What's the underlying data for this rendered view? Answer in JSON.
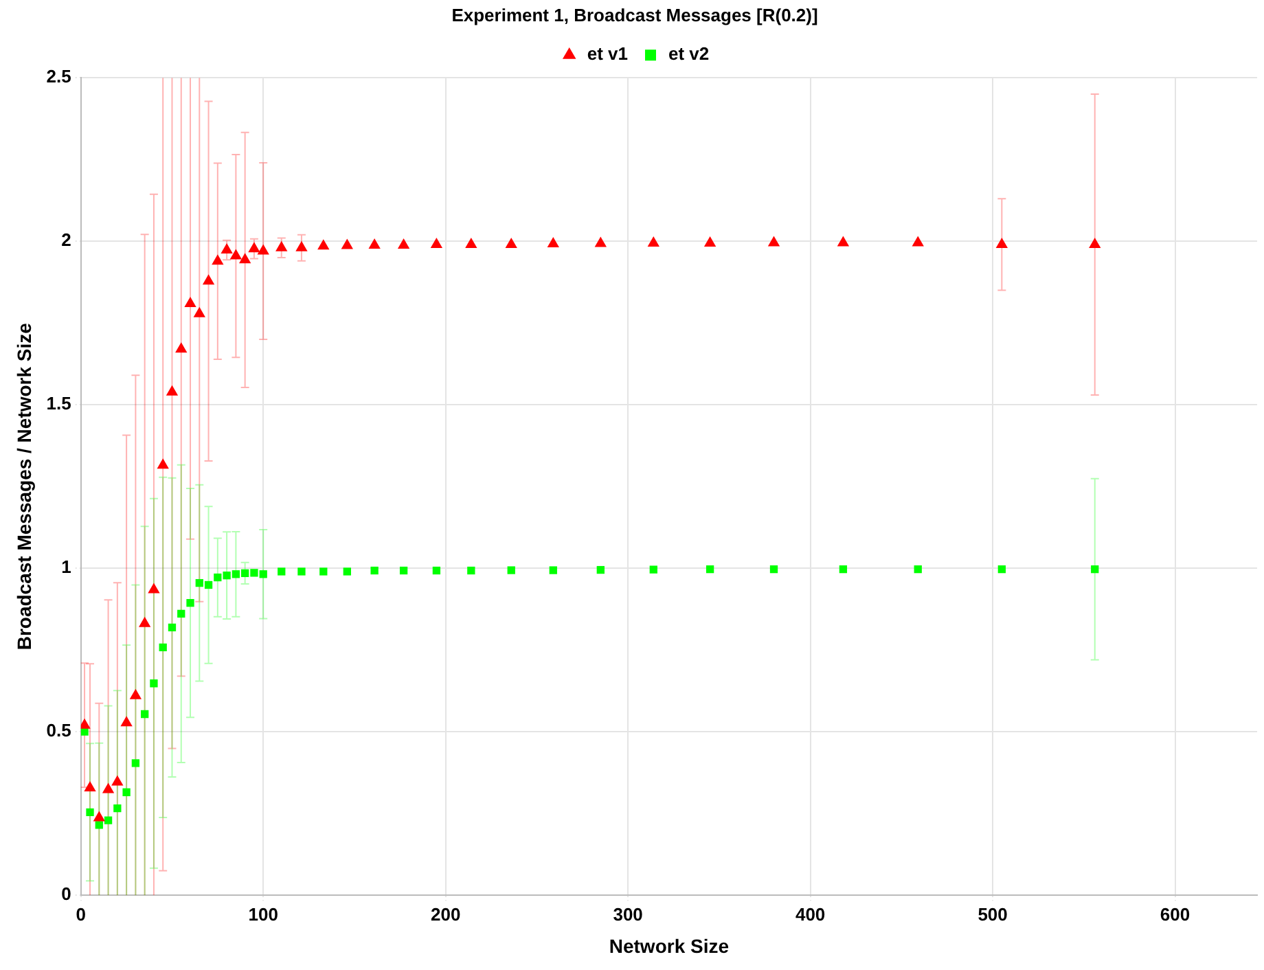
{
  "chart_data": {
    "type": "scatter",
    "title": "Experiment 1, Broadcast Messages [R(0.2)]",
    "xlabel": "Network Size",
    "ylabel": "Broadcast Messages / Network Size",
    "x": [
      2,
      5,
      10,
      15,
      20,
      25,
      30,
      35,
      40,
      45,
      50,
      55,
      60,
      65,
      70,
      75,
      80,
      85,
      90,
      95,
      100,
      110,
      121,
      133,
      146,
      161,
      177,
      195,
      214,
      236,
      259,
      285,
      314,
      345,
      380,
      418,
      459,
      505,
      556
    ],
    "series": [
      {
        "name": "et v1",
        "color": "#ff0000",
        "marker": "triangle",
        "values": [
          0.52,
          0.328,
          0.237,
          0.323,
          0.346,
          0.527,
          0.61,
          0.831,
          0.934,
          1.315,
          1.539,
          1.67,
          1.809,
          1.778,
          1.878,
          1.939,
          1.973,
          1.955,
          1.943,
          1.977,
          1.97,
          1.98,
          1.98,
          1.985,
          1.987,
          1.988,
          1.988,
          1.99,
          1.99,
          1.99,
          1.992,
          1.993,
          1.994,
          1.994,
          1.995,
          1.995,
          1.995,
          1.99,
          1.99
        ],
        "errors": [
          0.19,
          [
            0,
            0.708
          ],
          [
            0,
            0.587
          ],
          [
            0,
            0.903
          ],
          [
            0,
            0.956
          ],
          [
            0,
            1.407
          ],
          [
            0,
            1.59
          ],
          [
            0,
            2.021
          ],
          [
            0,
            2.144
          ],
          [
            0.075,
            2.5
          ],
          [
            0.449,
            2.5
          ],
          [
            0.67,
            2.5
          ],
          [
            1.089,
            2.5
          ],
          [
            0.898,
            2.5
          ],
          0.55,
          0.3,
          0.03,
          0.31,
          0.39,
          0.03,
          0.27,
          0.03,
          0.04,
          null,
          null,
          null,
          null,
          null,
          null,
          null,
          null,
          null,
          null,
          null,
          null,
          null,
          null,
          0.14,
          0.46
        ]
      },
      {
        "name": "et v2",
        "color": "#00ff00",
        "marker": "square",
        "values": [
          0.5,
          0.254,
          0.215,
          0.229,
          0.266,
          0.315,
          0.404,
          0.554,
          0.648,
          0.758,
          0.819,
          0.861,
          0.894,
          0.955,
          0.949,
          0.972,
          0.978,
          0.982,
          0.985,
          0.986,
          0.982,
          0.99,
          0.99,
          0.99,
          0.99,
          0.993,
          0.993,
          0.993,
          0.993,
          0.994,
          0.994,
          0.995,
          0.996,
          0.997,
          0.997,
          0.997,
          0.997,
          0.997,
          0.997
        ],
        "errors": [
          null,
          0.21,
          [
            0,
            0.465
          ],
          [
            0,
            0.579
          ],
          [
            0,
            0.626
          ],
          [
            0,
            0.765
          ],
          [
            0,
            0.949
          ],
          [
            0,
            1.128
          ],
          0.565,
          0.52,
          0.457,
          0.455,
          0.35,
          0.3,
          0.24,
          0.12,
          0.133,
          0.13,
          0.033,
          null,
          0.136,
          null,
          null,
          null,
          null,
          null,
          null,
          null,
          null,
          null,
          null,
          null,
          null,
          null,
          null,
          null,
          null,
          null,
          0.277
        ]
      }
    ],
    "xlim": [
      0,
      645
    ],
    "xticks": [
      0,
      100,
      200,
      300,
      400,
      500,
      600
    ],
    "ylim": [
      0,
      2.5
    ],
    "yticks": [
      0,
      0.5,
      1,
      1.5,
      2,
      2.5
    ],
    "grid": true,
    "legend": "top"
  }
}
